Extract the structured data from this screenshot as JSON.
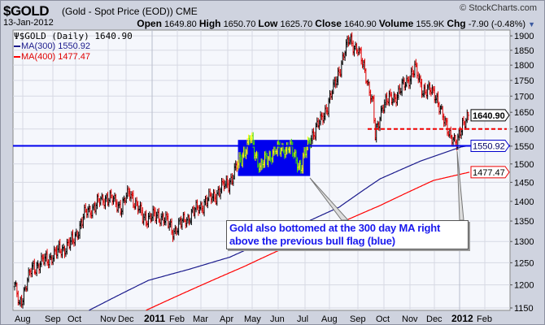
{
  "header": {
    "symbol": "$GOLD",
    "description": "(Gold - Spot Price (EOD)) CME",
    "copyright": "© StockCharts.com",
    "date": "13-Jan-2012",
    "open_label": "Open",
    "open": "1649.80",
    "high_label": "High",
    "high": "1650.70",
    "low_label": "Low",
    "low": "1625.70",
    "close_label": "Close",
    "close": "1640.90",
    "volume_label": "Volume",
    "volume": "155.9K",
    "chg_label": "Chg",
    "chg": "-7.90 (-0.48%)",
    "chg_arrow": "▼"
  },
  "legend": {
    "price": "$GOLD (Daily) 1640.90",
    "ma300": "MA(300) 1550.92",
    "ma400": "MA(400) 1477.47"
  },
  "annotation": {
    "line1": "Gold also bottomed at the 300 day MA right",
    "line2": "above the previous bull flag (blue)"
  },
  "chart_data": {
    "type": "ohlc",
    "title": "$GOLD (Daily)",
    "yscale": "log",
    "ylim": [
      1150,
      1900
    ],
    "y_ticks": [
      "1150",
      "1200",
      "1250",
      "1300",
      "1350",
      "1400",
      "1450",
      "1500",
      "1550",
      "1600",
      "1650",
      "1700",
      "1750",
      "1800",
      "1850",
      "1900"
    ],
    "x_ticks": [
      "Aug",
      "Sep",
      "Oct",
      "Nov",
      "Dec",
      "2011",
      "Feb",
      "Mar",
      "Apr",
      "May",
      "Jun",
      "Jul",
      "Aug",
      "Sep",
      "Oct",
      "Nov",
      "Dec",
      "2012",
      "Feb"
    ],
    "x_range": [
      "Jul 2010",
      "Feb 2012"
    ],
    "price_path_trading_day_vs_price": [
      [
        0,
        1196
      ],
      [
        4,
        1157
      ],
      [
        15,
        1237
      ],
      [
        31,
        1263
      ],
      [
        50,
        1299
      ],
      [
        61,
        1370
      ],
      [
        79,
        1413
      ],
      [
        92,
        1386
      ],
      [
        99,
        1424
      ],
      [
        110,
        1358
      ],
      [
        127,
        1362
      ],
      [
        136,
        1325
      ],
      [
        159,
        1386
      ],
      [
        175,
        1424
      ],
      [
        187,
        1462
      ],
      [
        197,
        1535
      ],
      [
        203,
        1569
      ],
      [
        211,
        1490
      ],
      [
        222,
        1535
      ],
      [
        236,
        1548
      ],
      [
        246,
        1490
      ],
      [
        255,
        1580
      ],
      [
        264,
        1627
      ],
      [
        274,
        1720
      ],
      [
        281,
        1810
      ],
      [
        288,
        1890
      ],
      [
        295,
        1850
      ],
      [
        302,
        1770
      ],
      [
        308,
        1672
      ],
      [
        310,
        1575
      ],
      [
        316,
        1672
      ],
      [
        330,
        1708
      ],
      [
        344,
        1786
      ],
      [
        351,
        1720
      ],
      [
        362,
        1708
      ],
      [
        369,
        1620
      ],
      [
        376,
        1580
      ],
      [
        380,
        1549
      ],
      [
        385,
        1620
      ],
      [
        390,
        1640.9
      ]
    ],
    "last_bar": {
      "open": 1649.8,
      "high": 1650.7,
      "low": 1625.7,
      "close": 1640.9
    },
    "ma300_path": [
      [
        64,
        1145
      ],
      [
        115,
        1210
      ],
      [
        150,
        1235
      ],
      [
        185,
        1263
      ],
      [
        220,
        1306
      ],
      [
        279,
        1385
      ],
      [
        314,
        1459
      ],
      [
        349,
        1508
      ],
      [
        384,
        1548
      ],
      [
        390,
        1550.92
      ]
    ],
    "ma400_path": [
      [
        113,
        1145
      ],
      [
        197,
        1241
      ],
      [
        267,
        1329
      ],
      [
        314,
        1389
      ],
      [
        360,
        1455
      ],
      [
        391,
        1477.47
      ]
    ],
    "last_value_labels": {
      "price": "1640.90",
      "ma300": "1550.92",
      "ma400": "1477.47"
    },
    "horizontal_lines": [
      {
        "name": "ma300-support",
        "value": 1550.92,
        "color": "#0000ee",
        "style": "solid"
      },
      {
        "name": "1600-support",
        "value": 1600,
        "color": "#ee0000",
        "style": "dashed"
      }
    ],
    "bull_flag_box": {
      "from_day": 192,
      "to_day": 254,
      "low": 1467,
      "high": 1568,
      "color": "#0000ee"
    },
    "colors": {
      "up": "#000000",
      "down": "#dd0000",
      "flag_up": "#ffff00",
      "flag_down": "#44dd00",
      "ma300": "#1a1a8c",
      "ma400": "#ff0000"
    }
  }
}
